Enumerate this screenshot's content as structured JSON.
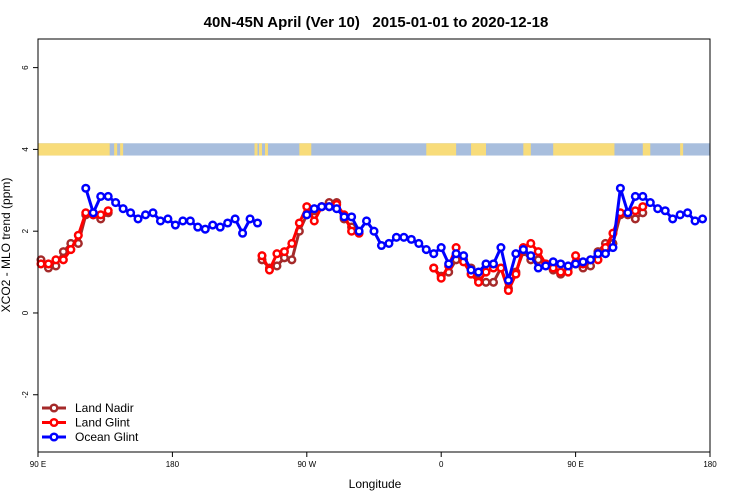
{
  "chart_data": {
    "type": "line",
    "title": "40N-45N April (Ver 10)   2015-01-01 to 2020-12-18",
    "xlabel": "Longitude",
    "ylabel": "XCO2 - MLO trend (ppm)",
    "xlim": [
      0,
      450
    ],
    "ylim": [
      -3.4,
      6.7
    ],
    "x_ticks": [
      {
        "v": 0,
        "label": "90 E"
      },
      {
        "v": 90,
        "label": "180"
      },
      {
        "v": 180,
        "label": "90 W"
      },
      {
        "v": 270,
        "label": "0"
      },
      {
        "v": 360,
        "label": "90 E"
      },
      {
        "v": 450,
        "label": "180"
      }
    ],
    "y_ticks": [
      {
        "v": -2,
        "label": "-2"
      },
      {
        "v": 0,
        "label": "0"
      },
      {
        "v": 2,
        "label": "2"
      },
      {
        "v": 4,
        "label": "4"
      },
      {
        "v": 6,
        "label": "6"
      }
    ],
    "land_ocean_strip": {
      "ymin": 3.85,
      "ymax": 4.15,
      "land_color": "#f8dc7a",
      "ocean_color": "#a8bedd"
    },
    "land_ranges": [
      [
        0,
        48
      ],
      [
        51,
        53
      ],
      [
        55,
        57
      ],
      [
        145,
        147
      ],
      [
        148,
        150
      ],
      [
        152,
        154
      ],
      [
        175,
        183
      ],
      [
        260,
        280
      ],
      [
        290,
        300
      ],
      [
        325,
        330
      ],
      [
        345,
        386
      ],
      [
        405,
        410
      ],
      [
        430,
        432
      ]
    ],
    "grid": false,
    "legend_position": "bottom-left",
    "series": [
      {
        "name": "Land Nadir",
        "color": "#a52a2a",
        "segments": [
          [
            [
              2,
              1.3
            ],
            [
              7,
              1.1
            ],
            [
              12,
              1.15
            ],
            [
              17,
              1.5
            ],
            [
              22,
              1.7
            ],
            [
              27,
              1.7
            ],
            [
              32,
              2.4
            ],
            [
              37,
              2.4
            ],
            [
              42,
              2.3
            ],
            [
              47,
              2.45
            ]
          ],
          [
            [
              150,
              1.3
            ],
            [
              155,
              1.1
            ],
            [
              160,
              1.15
            ],
            [
              165,
              1.35
            ],
            [
              170,
              1.3
            ],
            [
              175,
              2.0
            ],
            [
              180,
              2.4
            ],
            [
              185,
              2.5
            ],
            [
              190,
              2.6
            ],
            [
              195,
              2.7
            ],
            [
              200,
              2.7
            ],
            [
              205,
              2.3
            ],
            [
              210,
              2.1
            ]
          ],
          [
            [
              265,
              1.1
            ],
            [
              270,
              0.9
            ],
            [
              275,
              1.0
            ],
            [
              280,
              1.3
            ],
            [
              285,
              1.3
            ],
            [
              290,
              1.1
            ],
            [
              295,
              0.8
            ],
            [
              300,
              0.75
            ],
            [
              305,
              0.75
            ],
            [
              310,
              1.1
            ],
            [
              315,
              0.6
            ],
            [
              320,
              1.0
            ],
            [
              325,
              1.5
            ],
            [
              330,
              1.3
            ],
            [
              335,
              1.3
            ],
            [
              340,
              1.2
            ],
            [
              345,
              1.05
            ],
            [
              350,
              0.95
            ],
            [
              355,
              1.1
            ],
            [
              360,
              1.2
            ],
            [
              365,
              1.1
            ],
            [
              370,
              1.15
            ],
            [
              375,
              1.5
            ],
            [
              380,
              1.7
            ],
            [
              385,
              1.7
            ],
            [
              390,
              2.4
            ],
            [
              395,
              2.4
            ],
            [
              400,
              2.3
            ],
            [
              405,
              2.45
            ]
          ]
        ]
      },
      {
        "name": "Land Glint",
        "color": "#ff0000",
        "segments": [
          [
            [
              2,
              1.2
            ],
            [
              7,
              1.2
            ],
            [
              12,
              1.3
            ],
            [
              17,
              1.3
            ],
            [
              22,
              1.55
            ],
            [
              27,
              1.9
            ],
            [
              32,
              2.45
            ],
            [
              37,
              2.4
            ],
            [
              42,
              2.4
            ],
            [
              47,
              2.5
            ]
          ],
          [
            [
              150,
              1.4
            ],
            [
              155,
              1.05
            ],
            [
              160,
              1.45
            ],
            [
              165,
              1.5
            ],
            [
              170,
              1.7
            ],
            [
              175,
              2.2
            ],
            [
              180,
              2.6
            ],
            [
              185,
              2.25
            ],
            [
              190,
              2.6
            ],
            [
              195,
              2.6
            ],
            [
              200,
              2.65
            ],
            [
              205,
              2.4
            ],
            [
              210,
              2.0
            ],
            [
              215,
              1.95
            ]
          ],
          [
            [
              265,
              1.1
            ],
            [
              270,
              0.85
            ],
            [
              275,
              1.15
            ],
            [
              280,
              1.6
            ],
            [
              285,
              1.25
            ],
            [
              290,
              0.95
            ],
            [
              295,
              0.75
            ],
            [
              300,
              1.0
            ],
            [
              305,
              1.1
            ],
            [
              310,
              1.1
            ],
            [
              315,
              0.55
            ],
            [
              320,
              0.95
            ],
            [
              325,
              1.6
            ],
            [
              330,
              1.7
            ],
            [
              335,
              1.5
            ],
            [
              340,
              1.2
            ],
            [
              345,
              1.1
            ],
            [
              350,
              1.0
            ],
            [
              355,
              1.0
            ],
            [
              360,
              1.4
            ],
            [
              365,
              1.2
            ],
            [
              370,
              1.3
            ],
            [
              375,
              1.3
            ],
            [
              380,
              1.6
            ],
            [
              385,
              1.95
            ],
            [
              390,
              2.45
            ],
            [
              395,
              2.45
            ],
            [
              400,
              2.5
            ],
            [
              405,
              2.6
            ]
          ]
        ]
      },
      {
        "name": "Ocean Glint",
        "color": "#0000ff",
        "segments": [
          [
            [
              32,
              3.05
            ],
            [
              37,
              2.45
            ],
            [
              42,
              2.85
            ],
            [
              47,
              2.85
            ],
            [
              52,
              2.7
            ],
            [
              57,
              2.55
            ],
            [
              62,
              2.45
            ],
            [
              67,
              2.3
            ],
            [
              72,
              2.4
            ],
            [
              77,
              2.45
            ],
            [
              82,
              2.25
            ],
            [
              87,
              2.3
            ],
            [
              92,
              2.15
            ],
            [
              97,
              2.25
            ],
            [
              102,
              2.25
            ],
            [
              107,
              2.1
            ],
            [
              112,
              2.05
            ],
            [
              117,
              2.15
            ],
            [
              122,
              2.1
            ],
            [
              127,
              2.2
            ],
            [
              132,
              2.3
            ],
            [
              137,
              1.95
            ],
            [
              142,
              2.3
            ],
            [
              147,
              2.2
            ]
          ],
          [
            [
              180,
              2.4
            ],
            [
              185,
              2.55
            ],
            [
              190,
              2.6
            ],
            [
              195,
              2.6
            ],
            [
              200,
              2.55
            ],
            [
              205,
              2.35
            ],
            [
              210,
              2.35
            ],
            [
              215,
              2.0
            ],
            [
              220,
              2.25
            ],
            [
              225,
              2.0
            ],
            [
              230,
              1.65
            ],
            [
              235,
              1.7
            ],
            [
              240,
              1.85
            ],
            [
              245,
              1.85
            ],
            [
              250,
              1.8
            ],
            [
              255,
              1.7
            ],
            [
              260,
              1.55
            ],
            [
              265,
              1.45
            ],
            [
              270,
              1.6
            ],
            [
              275,
              1.2
            ],
            [
              280,
              1.45
            ],
            [
              285,
              1.4
            ],
            [
              290,
              1.05
            ],
            [
              295,
              1.0
            ],
            [
              300,
              1.2
            ],
            [
              305,
              1.2
            ],
            [
              310,
              1.6
            ],
            [
              315,
              0.8
            ],
            [
              320,
              1.45
            ],
            [
              325,
              1.55
            ],
            [
              330,
              1.4
            ],
            [
              335,
              1.1
            ],
            [
              340,
              1.15
            ],
            [
              345,
              1.25
            ],
            [
              350,
              1.2
            ],
            [
              355,
              1.15
            ],
            [
              360,
              1.2
            ],
            [
              365,
              1.25
            ],
            [
              370,
              1.3
            ],
            [
              375,
              1.45
            ],
            [
              380,
              1.45
            ],
            [
              385,
              1.6
            ],
            [
              390,
              3.05
            ],
            [
              395,
              2.45
            ],
            [
              400,
              2.85
            ],
            [
              405,
              2.85
            ],
            [
              410,
              2.7
            ],
            [
              415,
              2.55
            ],
            [
              420,
              2.5
            ],
            [
              425,
              2.3
            ],
            [
              430,
              2.4
            ],
            [
              435,
              2.45
            ],
            [
              440,
              2.25
            ],
            [
              445,
              2.3
            ]
          ]
        ]
      }
    ]
  }
}
